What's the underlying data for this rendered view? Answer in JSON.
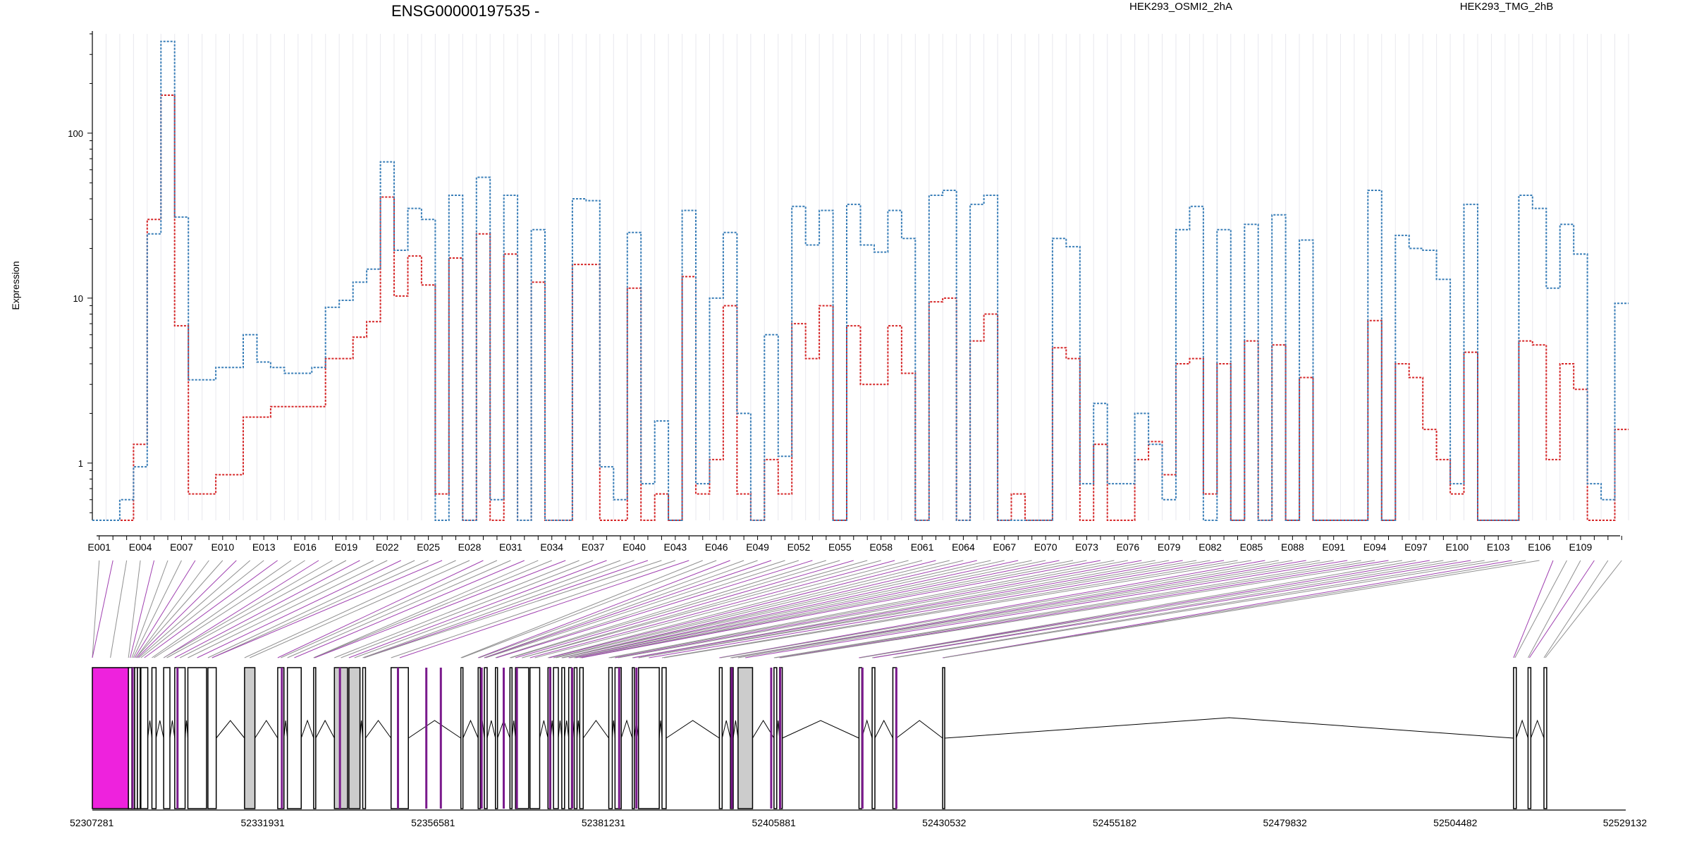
{
  "chart_data": {
    "type": "line",
    "title": "ENSG00000197535 -",
    "ylabel": "Expression",
    "xlabel": "",
    "yscale": "log",
    "ylim": [
      0.45,
      400
    ],
    "yticks": [
      1,
      10,
      100
    ],
    "ytick_labels": [
      "1",
      "10",
      "100"
    ],
    "legend_placement": "top",
    "line_style": "dashed steps",
    "grid": "light vertical lines per exon",
    "series": [
      {
        "name": "HEK293_OSMI2_2hA",
        "color": "#d62728",
        "values": [
          0.45,
          0.45,
          0.45,
          1.3,
          30,
          170,
          6.8,
          0.65,
          0.65,
          0.85,
          0.85,
          1.9,
          1.9,
          2.2,
          2.2,
          2.2,
          2.2,
          4.3,
          4.3,
          5.8,
          7.2,
          41,
          10.3,
          18,
          12,
          0.65,
          17.5,
          0.45,
          24.5,
          0.45,
          18.5,
          0.45,
          12.5,
          0.45,
          0.45,
          16,
          16,
          0.45,
          0.45,
          11.5,
          0.45,
          0.65,
          0.45,
          13.5,
          0.65,
          1.05,
          9,
          0.65,
          0.45,
          1.05,
          0.65,
          7,
          4.3,
          9,
          0.45,
          6.8,
          3,
          3,
          6.8,
          3.5,
          0.45,
          9.5,
          10,
          0.45,
          5.5,
          8,
          0.45,
          0.65,
          0.45,
          0.45,
          5,
          4.3,
          0.45,
          1.3,
          0.45,
          0.45,
          1.05,
          1.35,
          0.85,
          4,
          4.3,
          0.65,
          4,
          0.45,
          5.5,
          0.45,
          5.2,
          0.45,
          3.3,
          0.45,
          0.45,
          0.45,
          0.45,
          7.3,
          0.45,
          4,
          3.3,
          1.6,
          1.05,
          0.65,
          4.7,
          0.45,
          0.45,
          0.45,
          5.5,
          5.2,
          1.05,
          4,
          2.8,
          0.45,
          0.45,
          1.6
        ]
      },
      {
        "name": "HEK293_TMG_2hB",
        "color": "#3a7fb8",
        "values": [
          0.45,
          0.45,
          0.6,
          0.95,
          24.5,
          360,
          31,
          3.2,
          3.2,
          3.8,
          3.8,
          6,
          4.1,
          3.8,
          3.5,
          3.5,
          3.8,
          8.8,
          9.7,
          12.5,
          15,
          67,
          19.5,
          35,
          30,
          0.45,
          42,
          0.45,
          54,
          0.6,
          42,
          0.45,
          26,
          0.45,
          0.45,
          40,
          39,
          0.95,
          0.6,
          25,
          0.75,
          1.8,
          0.45,
          34,
          0.75,
          10,
          25,
          2,
          0.45,
          6,
          1.1,
          36,
          21,
          34,
          0.45,
          37,
          21,
          19,
          34,
          23,
          0.45,
          42,
          45,
          0.45,
          37,
          42,
          0.45,
          0.45,
          0.45,
          0.45,
          23,
          20.5,
          0.75,
          2.3,
          0.75,
          0.75,
          2,
          1.3,
          0.6,
          26,
          36,
          0.45,
          26,
          0.45,
          28,
          0.45,
          32,
          0.45,
          22.5,
          0.45,
          0.45,
          0.45,
          0.45,
          45,
          0.45,
          24,
          20,
          19.5,
          13,
          0.75,
          37,
          0.45,
          0.45,
          0.45,
          42,
          35,
          11.5,
          28,
          18.5,
          0.75,
          0.6,
          9.3
        ]
      }
    ],
    "exon_labels": [
      "E001",
      "E004",
      "E007",
      "E010",
      "E013",
      "E016",
      "E019",
      "E022",
      "E025",
      "E028",
      "E031",
      "E034",
      "E037",
      "E040",
      "E043",
      "E046",
      "E049",
      "E052",
      "E055",
      "E058",
      "E061",
      "E064",
      "E067",
      "E070",
      "E073",
      "E076",
      "E079",
      "E082",
      "E085",
      "E088",
      "E091",
      "E094",
      "E097",
      "E100",
      "E103",
      "E106",
      "E109"
    ],
    "genomic_coordinate_labels": [
      "52307281",
      "52331931",
      "52356581",
      "52381231",
      "52405881",
      "52430532",
      "52455182",
      "52479832",
      "52504482",
      "52529132"
    ],
    "genomic_range": [
      52307281,
      52529132
    ],
    "highlight_color": "#ee22dd",
    "shaded_exon_color": "#cccccc"
  }
}
